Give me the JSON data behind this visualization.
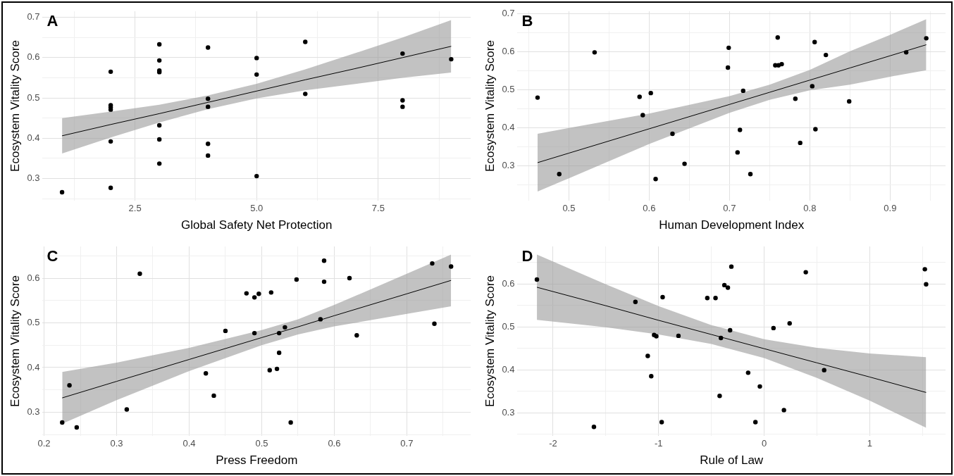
{
  "chart_data": [
    {
      "type": "scatter",
      "title": "A",
      "xlabel": "Global Safety Net Protection",
      "ylabel": "Ecosystem Vitality Score",
      "grid": true,
      "xlim": [
        0.6,
        9.4
      ],
      "ylim": [
        0.245,
        0.715
      ],
      "xticks": [
        {
          "value": 1.25,
          "label": null
        },
        2.5,
        {
          "value": 3.75,
          "label": null
        },
        {
          "value": 5,
          "label": "5.0"
        },
        {
          "value": 6.25,
          "label": null
        },
        7.5,
        {
          "value": 8.75,
          "label": null
        }
      ],
      "yticks": [
        {
          "value": 0.25,
          "label": null
        },
        0.3,
        {
          "value": 0.35,
          "label": null
        },
        0.4,
        {
          "value": 0.45,
          "label": null
        },
        0.5,
        {
          "value": 0.55,
          "label": null
        },
        0.6,
        {
          "value": 0.65,
          "label": null
        },
        0.7
      ],
      "series": [
        {
          "marker": "circle",
          "color": "#000000",
          "x": [
            1,
            2,
            2,
            2,
            2,
            2,
            2,
            3,
            3,
            3,
            3,
            3,
            3,
            3,
            4,
            4,
            4,
            4,
            4,
            5,
            5,
            5,
            6,
            6,
            8,
            8,
            8,
            9
          ],
          "values": [
            0.266,
            0.565,
            0.482,
            0.477,
            0.471,
            0.392,
            0.277,
            0.633,
            0.593,
            0.568,
            0.564,
            0.432,
            0.397,
            0.337,
            0.625,
            0.498,
            0.478,
            0.386,
            0.357,
            0.599,
            0.558,
            0.306,
            0.639,
            0.51,
            0.61,
            0.494,
            0.478,
            0.596
          ]
        },
        {
          "type": "line",
          "marker": "none",
          "color": "#000000",
          "x": [
            1,
            2,
            3,
            4,
            5,
            6,
            7,
            8,
            9
          ],
          "values": [
            0.406,
            0.434,
            0.461,
            0.489,
            0.517,
            0.545,
            0.572,
            0.6,
            0.628
          ],
          "lower": [
            0.362,
            0.402,
            0.439,
            0.472,
            0.499,
            0.519,
            0.534,
            0.55,
            0.563
          ],
          "upper": [
            0.45,
            0.466,
            0.483,
            0.506,
            0.535,
            0.571,
            0.61,
            0.65,
            0.693
          ]
        }
      ]
    },
    {
      "type": "scatter",
      "title": "B",
      "xlabel": "Human Development Index",
      "ylabel": "Ecosystem Vitality Score",
      "grid": true,
      "xlim": [
        0.436,
        0.969
      ],
      "ylim": [
        0.209,
        0.707
      ],
      "xticks": [
        {
          "value": 0.45,
          "label": null
        },
        0.5,
        {
          "value": 0.55,
          "label": null
        },
        0.6,
        {
          "value": 0.65,
          "label": null
        },
        0.7,
        {
          "value": 0.75,
          "label": null
        },
        0.8,
        {
          "value": 0.85,
          "label": null
        },
        0.9,
        {
          "value": 0.95,
          "label": null
        }
      ],
      "yticks": [
        {
          "value": 0.25,
          "label": null
        },
        0.3,
        {
          "value": 0.35,
          "label": null
        },
        0.4,
        {
          "value": 0.45,
          "label": null
        },
        0.5,
        {
          "value": 0.55,
          "label": null
        },
        0.6,
        {
          "value": 0.65,
          "label": null
        },
        0.7
      ],
      "series": [
        {
          "marker": "circle",
          "color": "#000000",
          "x": [
            0.461,
            0.488,
            0.532,
            0.588,
            0.602,
            0.592,
            0.608,
            0.629,
            0.644,
            0.699,
            0.698,
            0.71,
            0.713,
            0.717,
            0.726,
            0.76,
            0.757,
            0.761,
            0.765,
            0.782,
            0.788,
            0.803,
            0.806,
            0.807,
            0.82,
            0.849,
            0.92,
            0.945
          ],
          "values": [
            0.48,
            0.279,
            0.599,
            0.482,
            0.492,
            0.434,
            0.266,
            0.385,
            0.306,
            0.611,
            0.559,
            0.336,
            0.395,
            0.498,
            0.279,
            0.638,
            0.565,
            0.565,
            0.568,
            0.477,
            0.361,
            0.51,
            0.626,
            0.397,
            0.592,
            0.47,
            0.599,
            0.636
          ]
        },
        {
          "type": "line",
          "marker": "none",
          "color": "#000000",
          "x": [
            0.461,
            0.5,
            0.6,
            0.7,
            0.75,
            0.8,
            0.85,
            0.9,
            0.945
          ],
          "values": [
            0.309,
            0.334,
            0.398,
            0.462,
            0.494,
            0.526,
            0.558,
            0.59,
            0.619
          ],
          "lower": [
            0.233,
            0.268,
            0.358,
            0.44,
            0.474,
            0.499,
            0.514,
            0.535,
            0.552
          ],
          "upper": [
            0.385,
            0.4,
            0.438,
            0.484,
            0.514,
            0.553,
            0.602,
            0.645,
            0.686
          ]
        }
      ]
    },
    {
      "type": "scatter",
      "title": "C",
      "xlabel": "Press Freedom",
      "ylabel": "Ecosystem Vitality Score",
      "grid": true,
      "xlim": [
        0.198,
        0.788
      ],
      "ylim": [
        0.247,
        0.671
      ],
      "xticks": [
        0.2,
        {
          "value": 0.25,
          "label": null
        },
        0.3,
        {
          "value": 0.35,
          "label": null
        },
        0.4,
        {
          "value": 0.45,
          "label": null
        },
        0.5,
        {
          "value": 0.55,
          "label": null
        },
        0.6,
        {
          "value": 0.65,
          "label": null
        },
        0.7,
        {
          "value": 0.75,
          "label": null
        }
      ],
      "yticks": [
        {
          "value": 0.25,
          "label": null
        },
        0.3,
        {
          "value": 0.35,
          "label": null
        },
        0.4,
        {
          "value": 0.45,
          "label": null
        },
        0.5,
        {
          "value": 0.55,
          "label": null
        },
        0.6,
        {
          "value": 0.65,
          "label": null
        }
      ],
      "series": [
        {
          "marker": "circle",
          "color": "#000000",
          "x": [
            0.225,
            0.235,
            0.245,
            0.314,
            0.332,
            0.423,
            0.434,
            0.45,
            0.479,
            0.49,
            0.496,
            0.49,
            0.511,
            0.513,
            0.521,
            0.524,
            0.524,
            0.532,
            0.54,
            0.548,
            0.581,
            0.586,
            0.586,
            0.621,
            0.631,
            0.735,
            0.738,
            0.761
          ],
          "values": [
            0.277,
            0.36,
            0.266,
            0.306,
            0.61,
            0.387,
            0.337,
            0.482,
            0.566,
            0.557,
            0.565,
            0.477,
            0.394,
            0.568,
            0.397,
            0.477,
            0.433,
            0.49,
            0.277,
            0.597,
            0.508,
            0.639,
            0.592,
            0.6,
            0.472,
            0.633,
            0.498,
            0.626
          ]
        },
        {
          "type": "line",
          "marker": "none",
          "color": "#000000",
          "x": [
            0.225,
            0.3,
            0.4,
            0.5,
            0.55,
            0.6,
            0.7,
            0.761
          ],
          "values": [
            0.332,
            0.369,
            0.418,
            0.467,
            0.491,
            0.516,
            0.565,
            0.595
          ],
          "lower": [
            0.274,
            0.327,
            0.392,
            0.45,
            0.474,
            0.492,
            0.52,
            0.537
          ],
          "upper": [
            0.39,
            0.411,
            0.444,
            0.484,
            0.508,
            0.54,
            0.61,
            0.653
          ]
        }
      ]
    },
    {
      "type": "scatter",
      "title": "D",
      "xlabel": "Rule of Law",
      "ylabel": "Ecosystem Vitality Score",
      "grid": true,
      "xlim": [
        -2.337,
        1.718
      ],
      "ylim": [
        0.246,
        0.687
      ],
      "xticks": [
        -2,
        {
          "value": -1.5,
          "label": null
        },
        -1,
        {
          "value": -0.5,
          "label": null
        },
        0,
        {
          "value": 0.5,
          "label": null
        },
        1,
        {
          "value": 1.5,
          "label": null
        }
      ],
      "yticks": [
        {
          "value": 0.25,
          "label": null
        },
        0.3,
        {
          "value": 0.35,
          "label": null
        },
        0.4,
        {
          "value": 0.45,
          "label": null
        },
        0.5,
        {
          "value": 0.55,
          "label": null
        },
        0.6,
        {
          "value": 0.65,
          "label": null
        }
      ],
      "series": [
        {
          "marker": "circle",
          "color": "#000000",
          "x": [
            -2.153,
            -1.613,
            -1.22,
            -1.103,
            -1.07,
            -1.043,
            -1.022,
            -0.971,
            -0.962,
            -0.812,
            -0.539,
            -0.461,
            -0.422,
            -0.41,
            -0.377,
            -0.344,
            -0.323,
            -0.311,
            -0.152,
            -0.083,
            -0.041,
            0.088,
            0.187,
            0.241,
            0.394,
            0.568,
            1.522,
            1.534
          ],
          "values": [
            0.61,
            0.267,
            0.558,
            0.432,
            0.385,
            0.481,
            0.478,
            0.278,
            0.569,
            0.479,
            0.567,
            0.567,
            0.339,
            0.474,
            0.597,
            0.591,
            0.492,
            0.64,
            0.393,
            0.278,
            0.361,
            0.497,
            0.306,
            0.508,
            0.627,
            0.399,
            0.634,
            0.599
          ]
        },
        {
          "type": "line",
          "marker": "none",
          "color": "#000000",
          "x": [
            -2.153,
            -1.5,
            -1,
            -0.5,
            0,
            0.5,
            1,
            1.534
          ],
          "values": [
            0.592,
            0.549,
            0.515,
            0.482,
            0.449,
            0.416,
            0.383,
            0.347
          ],
          "lower": [
            0.516,
            0.499,
            0.482,
            0.46,
            0.427,
            0.381,
            0.328,
            0.265
          ],
          "upper": [
            0.668,
            0.599,
            0.548,
            0.504,
            0.471,
            0.451,
            0.438,
            0.429
          ]
        }
      ]
    }
  ]
}
